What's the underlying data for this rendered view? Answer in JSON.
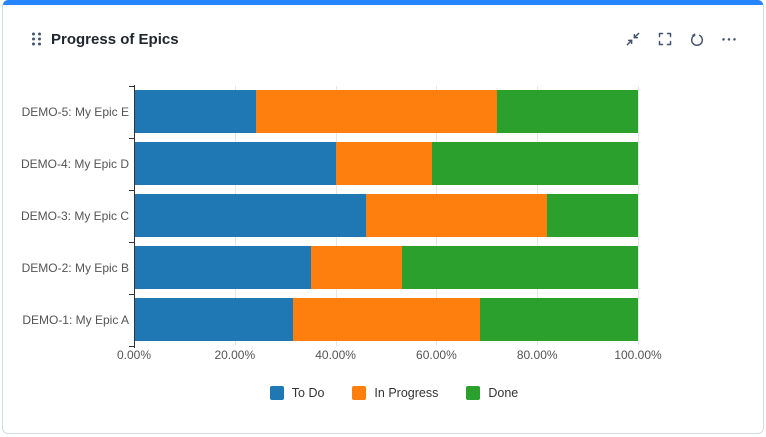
{
  "widget": {
    "title": "Progress of Epics",
    "accent_color": "#2684FF",
    "icons": {
      "drag_handle": "six-dot-drag-handle",
      "collapse": "shrink-diagonal-arrows",
      "fullscreen": "corner-brackets",
      "refresh": "rotate-counterclockwise",
      "more": "horizontal-ellipsis"
    }
  },
  "chart_data": {
    "type": "bar",
    "orientation": "horizontal",
    "stacked": true,
    "title": "Progress of Epics",
    "categories_top_to_bottom": [
      "DEMO-5: My Epic E",
      "DEMO-4: My Epic D",
      "DEMO-3: My Epic C",
      "DEMO-2: My Epic B",
      "DEMO-1: My Epic A"
    ],
    "series": [
      {
        "name": "To Do",
        "color": "#1f77b4",
        "values": [
          24,
          40,
          46,
          35,
          31.5
        ]
      },
      {
        "name": "In Progress",
        "color": "#ff7f0e",
        "values": [
          48,
          19,
          36,
          18,
          37
        ]
      },
      {
        "name": "Done",
        "color": "#2ca02c",
        "values": [
          28,
          41,
          18,
          47,
          31.5
        ]
      }
    ],
    "values_unit": "percent",
    "xlim": [
      0,
      100
    ],
    "x_ticks": [
      "0.00%",
      "20.00%",
      "40.00%",
      "60.00%",
      "80.00%",
      "100.00%"
    ],
    "grid": true,
    "legend_position": "bottom"
  }
}
